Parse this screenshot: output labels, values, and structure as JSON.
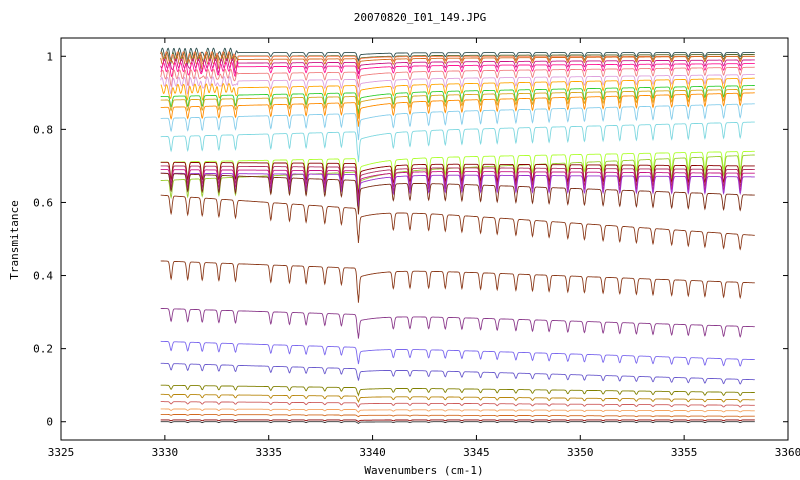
{
  "chart_data": {
    "type": "line",
    "title": "20070820_I01_149.JPG",
    "xlabel": "Wavenumbers (cm-1)",
    "ylabel": "Transmitance",
    "xlim": [
      3325,
      3360
    ],
    "ylim": [
      -0.05,
      1.05
    ],
    "x_ticks": [
      3325,
      3330,
      3335,
      3340,
      3345,
      3350,
      3355,
      3360
    ],
    "x_tick_labels": [
      "3325",
      "3330",
      "3335",
      "3340",
      "3345",
      "3350",
      "3355",
      "3360"
    ],
    "y_ticks": [
      0,
      0.2,
      0.4,
      0.6,
      0.8,
      1
    ],
    "y_tick_labels": [
      "0",
      "0.2",
      "0.4",
      "0.6",
      "0.8",
      "1"
    ],
    "x_range_data": [
      3329.8,
      3358.4
    ],
    "grid": false,
    "legend": "none",
    "absorption_lines": [
      3330.3,
      3331.1,
      3331.8,
      3332.6,
      3333.4,
      3335.1,
      3336.0,
      3336.8,
      3337.7,
      3338.5,
      3339.3,
      3341.0,
      3341.8,
      3342.7,
      3343.5,
      3344.3,
      3345.2,
      3346.0,
      3346.9,
      3347.7,
      3348.5,
      3349.4,
      3350.2,
      3351.1,
      3351.9,
      3352.7,
      3353.5,
      3354.4,
      3355.2,
      3356.0,
      3356.9,
      3357.7
    ],
    "main_absorption": 3339.3,
    "series": [
      {
        "left": 1.01,
        "right": 1.01,
        "color": "#2f4f4f"
      },
      {
        "left": 1.0,
        "right": 1.005,
        "color": "#556b2f"
      },
      {
        "left": 1.0,
        "right": 1.0,
        "color": "#ff7f50"
      },
      {
        "left": 0.99,
        "right": 1.0,
        "color": "#d2691e"
      },
      {
        "left": 0.98,
        "right": 0.99,
        "color": "#c71585"
      },
      {
        "left": 0.97,
        "right": 0.98,
        "color": "#ff1493"
      },
      {
        "left": 0.95,
        "right": 0.97,
        "color": "#f08080"
      },
      {
        "left": 0.93,
        "right": 0.95,
        "color": "#dda0dd"
      },
      {
        "left": 0.91,
        "right": 0.94,
        "color": "#ffa500"
      },
      {
        "left": 0.89,
        "right": 0.92,
        "color": "#32cd32"
      },
      {
        "left": 0.88,
        "right": 0.91,
        "color": "#daa520"
      },
      {
        "left": 0.86,
        "right": 0.9,
        "color": "#ff8c00"
      },
      {
        "left": 0.83,
        "right": 0.87,
        "color": "#87ceeb"
      },
      {
        "left": 0.78,
        "right": 0.82,
        "color": "#7fd8e0"
      },
      {
        "left": 0.71,
        "right": 0.74,
        "color": "#adff2f"
      },
      {
        "left": 0.66,
        "right": 0.73,
        "color": "#9acd32"
      },
      {
        "left": 0.71,
        "right": 0.7,
        "color": "#8b0000"
      },
      {
        "left": 0.7,
        "right": 0.69,
        "color": "#b03060"
      },
      {
        "left": 0.69,
        "right": 0.68,
        "color": "#c71585"
      },
      {
        "left": 0.68,
        "right": 0.67,
        "color": "#9932cc"
      },
      {
        "left": 0.68,
        "right": 0.62,
        "color": "#7b2d14"
      },
      {
        "left": 0.62,
        "right": 0.51,
        "color": "#8b3a1a"
      },
      {
        "left": 0.44,
        "right": 0.38,
        "color": "#8b3a1a"
      },
      {
        "left": 0.31,
        "right": 0.26,
        "color": "#8b3a8b"
      },
      {
        "left": 0.22,
        "right": 0.17,
        "color": "#7b68ee"
      },
      {
        "left": 0.16,
        "right": 0.115,
        "color": "#6a5acd"
      },
      {
        "left": 0.1,
        "right": 0.08,
        "color": "#808000"
      },
      {
        "left": 0.075,
        "right": 0.06,
        "color": "#b8860b"
      },
      {
        "left": 0.055,
        "right": 0.045,
        "color": "#cd5c5c"
      },
      {
        "left": 0.035,
        "right": 0.03,
        "color": "#f4a460"
      },
      {
        "left": 0.02,
        "right": 0.015,
        "color": "#d2691e"
      },
      {
        "left": 0.005,
        "right": 0.005,
        "color": "#8b0000"
      },
      {
        "left": 0.0,
        "right": 0.0,
        "color": "#333333"
      }
    ]
  }
}
